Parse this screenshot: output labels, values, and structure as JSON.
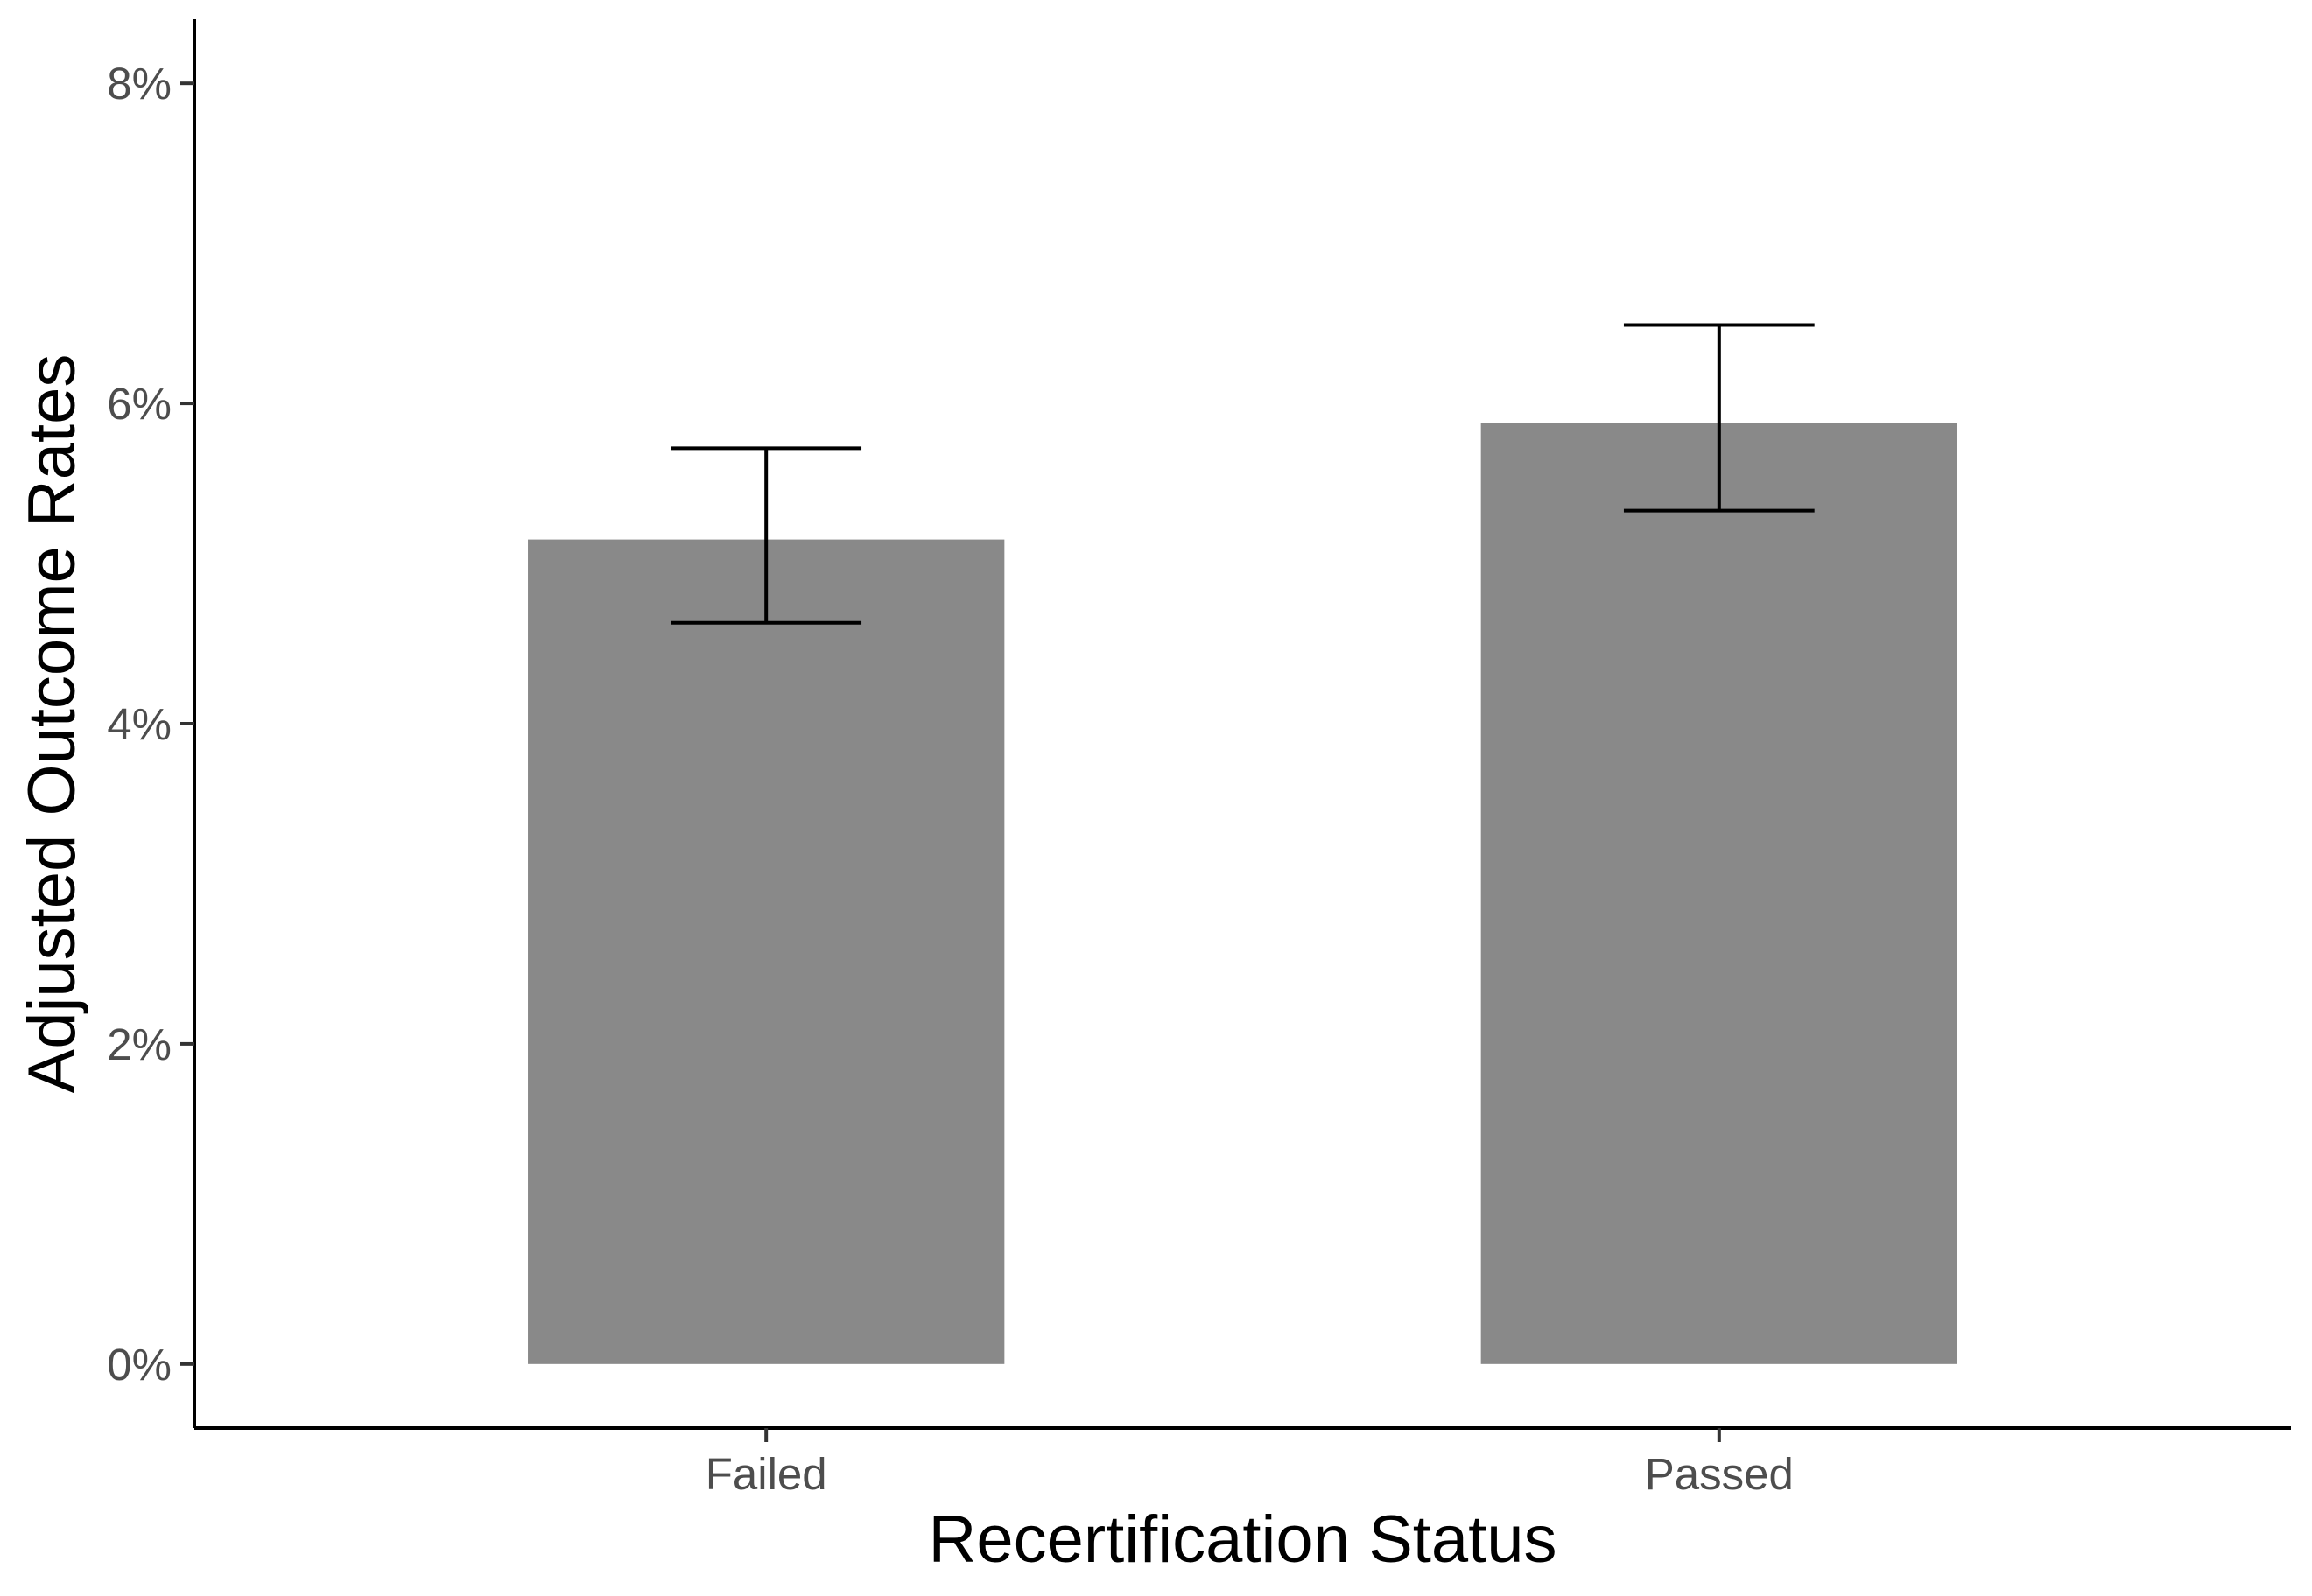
{
  "chart_data": {
    "type": "bar",
    "title": "",
    "xlabel": "Recertification Status",
    "ylabel": "Adjusted Outcome Rates",
    "categories": [
      "Failed",
      "Passed"
    ],
    "values": [
      5.15,
      5.88
    ],
    "error_low": [
      4.63,
      5.33
    ],
    "error_high": [
      5.72,
      6.49
    ],
    "ylim": [
      -0.4,
      8.4
    ],
    "yticks": [
      0,
      2,
      4,
      6,
      8
    ],
    "ytick_labels": [
      "0%",
      "2%",
      "4%",
      "6%",
      "8%"
    ],
    "grid": false,
    "legend": "none",
    "bar_color": "#898989",
    "axis_color": "#000000"
  }
}
